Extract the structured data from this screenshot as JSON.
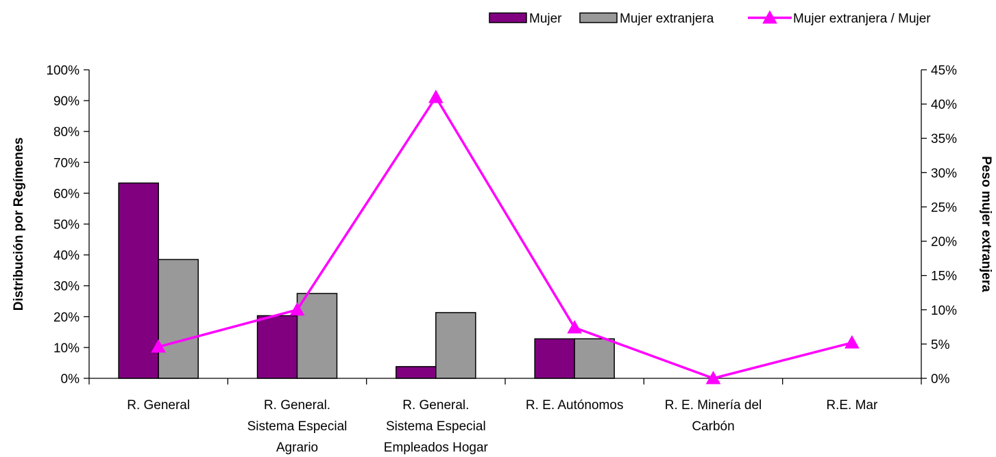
{
  "chart_data": {
    "type": "bar",
    "categories": [
      [
        "R. General"
      ],
      [
        "R. General.",
        "Sistema Especial",
        "Agrario"
      ],
      [
        "R. General.",
        "Sistema Especial",
        "Empleados Hogar"
      ],
      [
        "R. E. Autónomos"
      ],
      [
        "R. E. Minería del",
        "Carbón"
      ],
      [
        "R.E. Mar"
      ]
    ],
    "series": [
      {
        "name": "Mujer",
        "type": "bar",
        "axis": "left",
        "color": "#800080",
        "values": [
          63.3,
          20.3,
          3.8,
          12.8,
          0.0,
          0.0
        ]
      },
      {
        "name": "Mujer extranjera",
        "type": "bar",
        "axis": "left",
        "color": "#999999",
        "values": [
          38.5,
          27.5,
          21.3,
          12.8,
          0.0,
          0.0
        ]
      },
      {
        "name": "Mujer extranjera / Mujer",
        "type": "line",
        "axis": "right",
        "color": "#FF00FF",
        "marker": "triangle",
        "values": [
          4.6,
          10.0,
          41.0,
          7.4,
          0.0,
          5.2
        ]
      }
    ],
    "ylabel": "Distribución por Regímenes",
    "y2label": "Peso mujer extranjera",
    "ylim": [
      0,
      100
    ],
    "y2lim": [
      0,
      45
    ],
    "yticks": [
      "0%",
      "10%",
      "20%",
      "30%",
      "40%",
      "50%",
      "60%",
      "70%",
      "80%",
      "90%",
      "100%"
    ],
    "y2ticks": [
      "0%",
      "5%",
      "10%",
      "15%",
      "20%",
      "25%",
      "30%",
      "35%",
      "40%",
      "45%"
    ],
    "legend_position": "top-right",
    "grid": false
  }
}
